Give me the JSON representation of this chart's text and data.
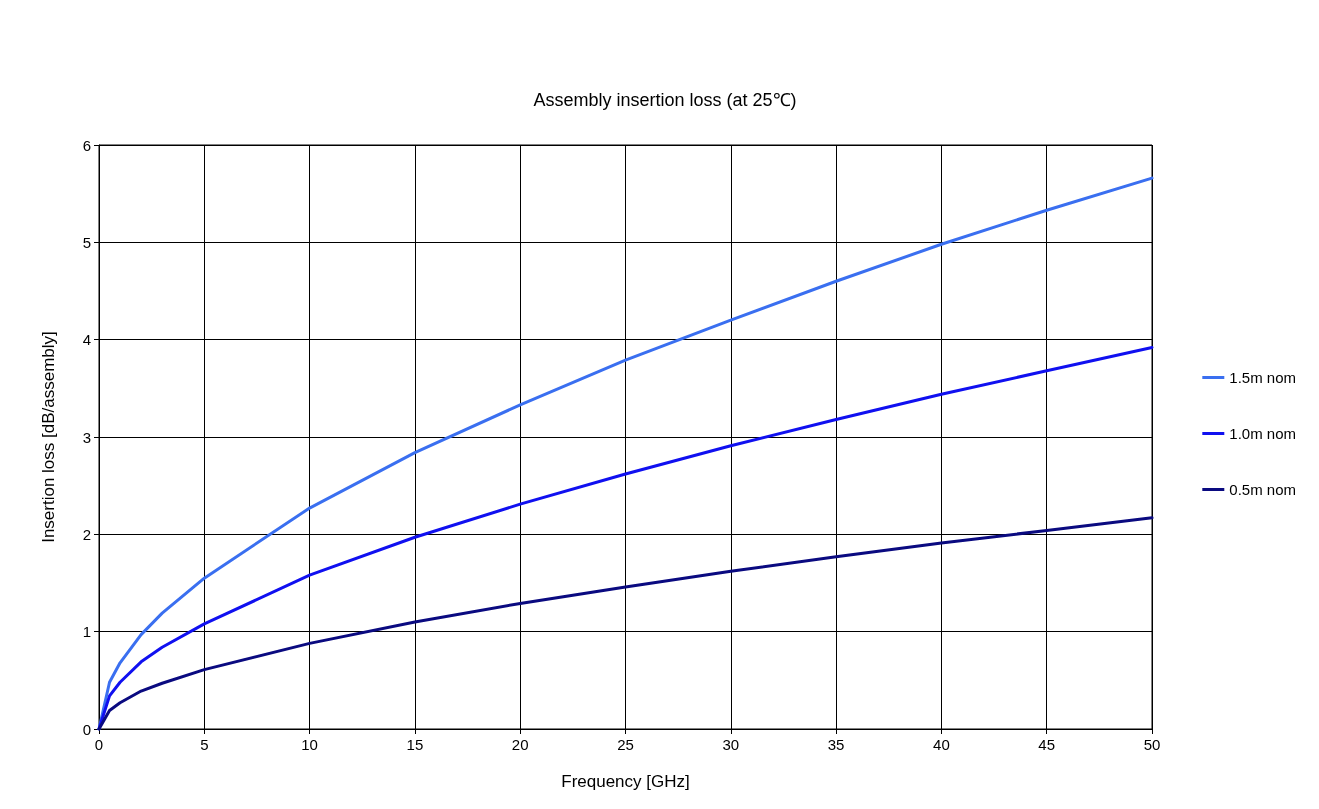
{
  "chart_data": {
    "type": "line",
    "title": "Assembly insertion loss (at 25℃)",
    "xlabel": "Frequency [GHz]",
    "ylabel": "Insertion loss [dB/assembly]",
    "x": [
      0,
      0.5,
      1,
      2,
      3,
      5,
      10,
      15,
      20,
      25,
      30,
      35,
      40,
      45,
      50
    ],
    "series": [
      {
        "name": "1.5m nom",
        "color": "#3a6ff0",
        "values": [
          0,
          0.48,
          0.68,
          0.97,
          1.19,
          1.55,
          2.27,
          2.84,
          3.33,
          3.79,
          4.2,
          4.6,
          4.98,
          5.33,
          5.66
        ]
      },
      {
        "name": "1.0m nom",
        "color": "#1010f0",
        "values": [
          0,
          0.34,
          0.48,
          0.69,
          0.84,
          1.08,
          1.58,
          1.97,
          2.31,
          2.62,
          2.91,
          3.18,
          3.44,
          3.68,
          3.92
        ]
      },
      {
        "name": "0.5m nom",
        "color": "#0a0a80",
        "values": [
          0,
          0.19,
          0.27,
          0.39,
          0.47,
          0.61,
          0.88,
          1.1,
          1.29,
          1.46,
          1.62,
          1.77,
          1.91,
          2.04,
          2.17
        ]
      }
    ],
    "xlim": [
      0,
      50
    ],
    "xticks": [
      0,
      5,
      10,
      15,
      20,
      25,
      30,
      35,
      40,
      45,
      50
    ],
    "ylim": [
      0,
      6
    ],
    "yticks": [
      0,
      1,
      2,
      3,
      4,
      5,
      6
    ],
    "grid": true,
    "legend": "right",
    "marker": "none",
    "line_style": "solid"
  }
}
